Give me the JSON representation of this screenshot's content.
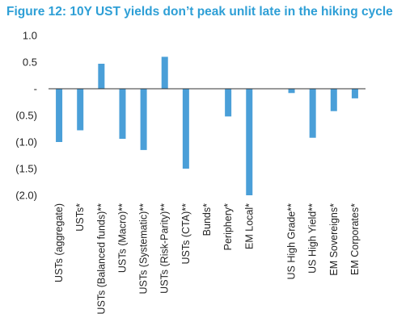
{
  "chart_data": {
    "type": "bar",
    "title": "Figure 12: 10Y UST yields don’t peak unlit late in the hiking cycle",
    "xlabel": "",
    "ylabel": "",
    "ylim": [
      -2.0,
      1.0
    ],
    "yticks": [
      {
        "value": 1.0,
        "label": "1.0"
      },
      {
        "value": 0.5,
        "label": "0.5"
      },
      {
        "value": 0.0,
        "label": "-"
      },
      {
        "value": -0.5,
        "label": "(0.5)"
      },
      {
        "value": -1.0,
        "label": "(1.0)"
      },
      {
        "value": -1.5,
        "label": "(1.5)"
      },
      {
        "value": -2.0,
        "label": "(2.0)"
      }
    ],
    "grid": false,
    "bar_color": "#4a9fd8",
    "categories": [
      "USTs (aggregate)",
      "USTs*",
      "USTs (Balanced funds)**",
      "USTs (Macro)**",
      "USTs (Systematic)**",
      "USTs (Risk-Parity)**",
      "USTs (CTA)**",
      "Bunds*",
      "Periphery*",
      "EM Local*",
      "",
      "US High Grade**",
      "US High Yield**",
      "EM Sovereigns*",
      "EM Corporates*"
    ],
    "values": [
      -1.0,
      -0.78,
      0.47,
      -0.94,
      -1.15,
      0.6,
      -1.5,
      0.0,
      -0.52,
      -2.0,
      null,
      -0.08,
      -0.92,
      -0.42,
      -0.18
    ]
  }
}
